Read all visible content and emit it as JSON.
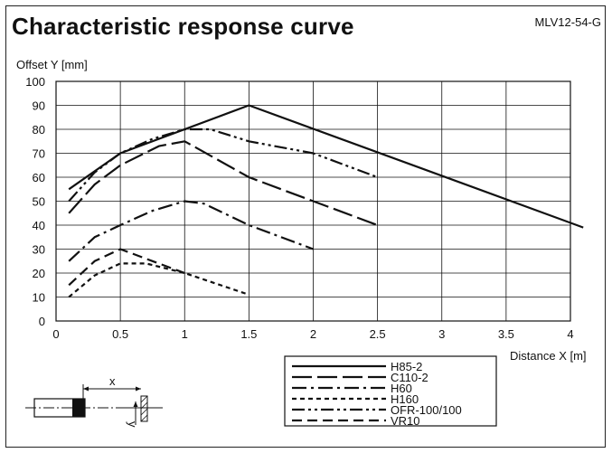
{
  "header": {
    "title": "Characteristic response curve",
    "model": "MLV12-54-G"
  },
  "chart_data": {
    "type": "line",
    "title": "Characteristic response curve",
    "xlabel": "Distance X [m]",
    "ylabel": "Offset Y [mm]",
    "xlim": [
      0,
      4
    ],
    "ylim": [
      0,
      100
    ],
    "x_ticks": [
      "0",
      "0.5",
      "1",
      "1.5",
      "2",
      "2.5",
      "3",
      "3.5",
      "4"
    ],
    "y_ticks": [
      "0",
      "10",
      "20",
      "30",
      "40",
      "50",
      "60",
      "70",
      "80",
      "90",
      "100"
    ],
    "grid": true,
    "legend_position": "bottom",
    "series": [
      {
        "name": "H85-2",
        "dash": "solid",
        "points": [
          [
            0.1,
            55
          ],
          [
            0.5,
            70
          ],
          [
            1.5,
            90
          ],
          [
            4.1,
            39
          ]
        ]
      },
      {
        "name": "C110-2",
        "dash": "long-dash",
        "points": [
          [
            0.1,
            45
          ],
          [
            0.3,
            57
          ],
          [
            0.5,
            65
          ],
          [
            0.8,
            73
          ],
          [
            1.0,
            75
          ],
          [
            1.1,
            72
          ],
          [
            1.5,
            60
          ],
          [
            2.0,
            50
          ],
          [
            2.5,
            40
          ]
        ]
      },
      {
        "name": "H60",
        "dash": "dash-dot",
        "points": [
          [
            0.1,
            25
          ],
          [
            0.3,
            35
          ],
          [
            0.5,
            40
          ],
          [
            0.75,
            46
          ],
          [
            1.0,
            50
          ],
          [
            1.15,
            49
          ],
          [
            1.5,
            40
          ],
          [
            2.0,
            30
          ]
        ]
      },
      {
        "name": "H160",
        "dash": "short-dash",
        "points": [
          [
            0.1,
            10
          ],
          [
            0.3,
            19
          ],
          [
            0.5,
            24
          ],
          [
            0.7,
            24
          ],
          [
            1.0,
            20
          ],
          [
            1.5,
            11
          ]
        ]
      },
      {
        "name": "OFR-100/100",
        "dash": "dash-dot-dot",
        "points": [
          [
            0.1,
            50
          ],
          [
            0.3,
            62
          ],
          [
            0.5,
            70
          ],
          [
            0.75,
            76
          ],
          [
            1.0,
            80
          ],
          [
            1.2,
            80
          ],
          [
            1.5,
            75
          ],
          [
            2.0,
            70
          ],
          [
            2.5,
            60
          ]
        ]
      },
      {
        "name": "VR10",
        "dash": "medium-dash",
        "points": [
          [
            0.1,
            15
          ],
          [
            0.3,
            25
          ],
          [
            0.5,
            30
          ],
          [
            0.75,
            25
          ],
          [
            1.0,
            20
          ]
        ]
      }
    ]
  },
  "diagram": {
    "x_label": "x",
    "y_label": "y"
  }
}
